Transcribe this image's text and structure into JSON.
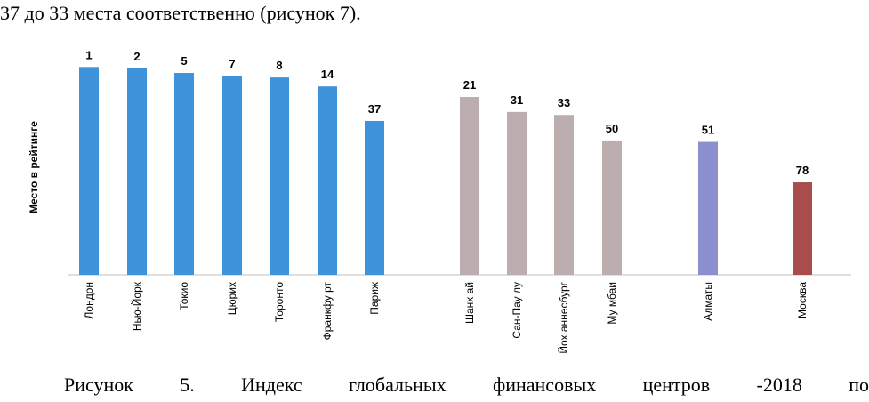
{
  "top_text": "37 до 33 места соответственно (рисунок 7).",
  "caption_words": [
    "Рисунок",
    "5.",
    "Индекс",
    "глобальных",
    "финансовых",
    "центров",
    "-2018",
    "по"
  ],
  "chart_data": {
    "type": "bar",
    "title": "",
    "xlabel": "",
    "ylabel": "Место в рейтинге",
    "categories": [
      "Лондон",
      "Нью-Йорк",
      "Токио",
      "Цюрих",
      "Торонто",
      "Франкфурт",
      "Париж",
      "Шанхай",
      "Сан-Паулу",
      "Йоханнесбург",
      "Мумбаи",
      "Алматы",
      "Москва"
    ],
    "category_tick_labels": [
      "Лондон",
      "Нью-Йорк",
      "Токио",
      "Цюрих",
      "Торонто",
      "Франкфу рт",
      "Париж",
      "Шанх ай",
      "Сан-Пау лу",
      "Йох аннесбург",
      "Му мбаи",
      "Алматы",
      "Москва"
    ],
    "values": [
      1,
      2,
      5,
      7,
      8,
      14,
      37,
      21,
      31,
      33,
      50,
      51,
      78
    ],
    "data_labels": [
      "1",
      "2",
      "5",
      "7",
      "8",
      "14",
      "37",
      "21",
      "31",
      "33",
      "50",
      "51",
      "78"
    ],
    "groups": [
      0,
      0,
      0,
      0,
      0,
      0,
      0,
      1,
      1,
      1,
      1,
      2,
      3
    ],
    "group_colors": [
      "#3f93db",
      "#bcaeae",
      "#8c8fcf",
      "#a84c4c"
    ],
    "grid": false,
    "legend": "none"
  }
}
